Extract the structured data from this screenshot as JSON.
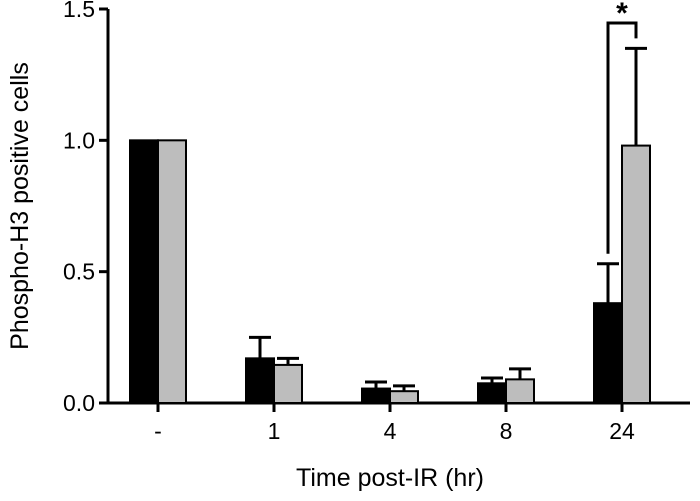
{
  "chart_data": {
    "type": "bar",
    "categories": [
      "-",
      "1",
      "4",
      "8",
      "24"
    ],
    "series": [
      {
        "color": "#000000",
        "values": [
          1.0,
          0.17,
          0.055,
          0.075,
          0.38
        ],
        "errors": [
          0.0,
          0.08,
          0.025,
          0.02,
          0.15
        ]
      },
      {
        "color": "#bdbdbd",
        "values": [
          1.0,
          0.145,
          0.045,
          0.09,
          0.98
        ],
        "errors": [
          0.0,
          0.025,
          0.02,
          0.04,
          0.37
        ]
      }
    ],
    "xlabel": "Time post-IR (hr)",
    "ylabel": "Phospho-H3 positive cells",
    "ylim": [
      0,
      1.5
    ],
    "yticks": [
      0.0,
      0.5,
      1.0,
      1.5
    ],
    "ytick_labels": [
      "0.0",
      "0.5",
      "1.0",
      "1.5"
    ],
    "grid": false,
    "annotations": [
      {
        "text": "*",
        "category": "24",
        "type": "significance-bracket"
      }
    ]
  }
}
